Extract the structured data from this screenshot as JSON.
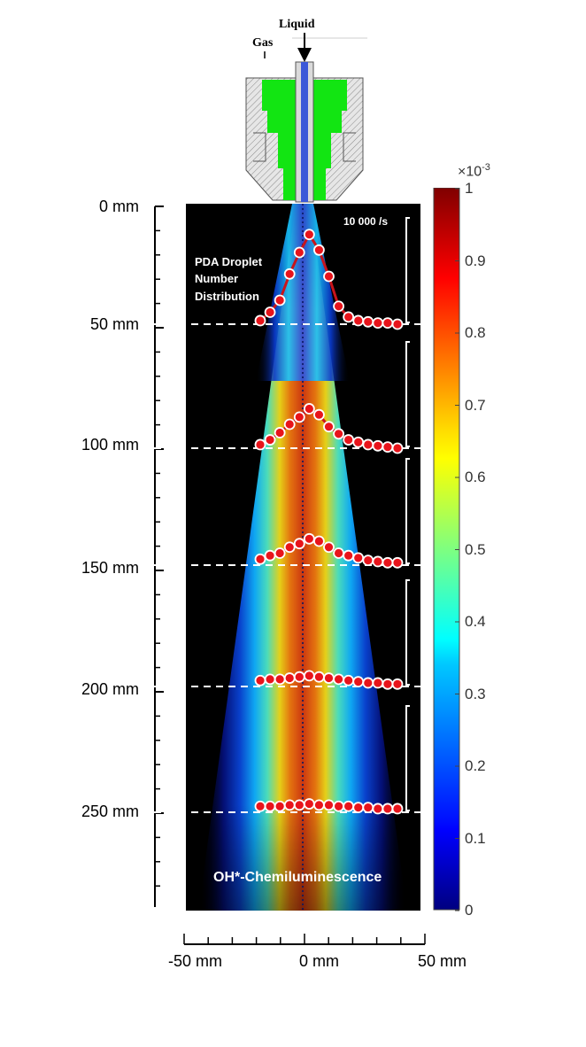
{
  "nozzle": {
    "liquid_label": "Liquid",
    "gas_label": "Gas"
  },
  "image_labels": {
    "pda_label_lines": [
      "PDA Droplet",
      "Number",
      "Distribution"
    ],
    "rate_label": "10 000 /s",
    "oh_label": "OH*-Chemiluminescence"
  },
  "y_axis": {
    "labels": [
      "0 mm",
      "50 mm",
      "100 mm",
      "150 mm",
      "200 mm",
      "250 mm"
    ]
  },
  "x_axis": {
    "labels": [
      "-50 mm",
      "0 mm",
      "50 mm"
    ]
  },
  "colorbar": {
    "multiplier_base": "×10",
    "multiplier_exp": "-3",
    "tick_labels": [
      "1",
      "0.9",
      "0.8",
      "0.7",
      "0.6",
      "0.5",
      "0.4",
      "0.3",
      "0.2",
      "0.1",
      "0"
    ],
    "colormap": "jet"
  },
  "pda_profiles": [
    {
      "axial_mm": 50,
      "relative_count": [
        0.03,
        0.1,
        0.2,
        0.42,
        0.6,
        0.75,
        0.62,
        0.4,
        0.15,
        0.06,
        0.03,
        0.02,
        0.01,
        0.01,
        0.0
      ]
    },
    {
      "axial_mm": 100,
      "relative_count": [
        0.03,
        0.07,
        0.13,
        0.2,
        0.26,
        0.33,
        0.28,
        0.18,
        0.12,
        0.07,
        0.05,
        0.03,
        0.02,
        0.01,
        0.0
      ]
    },
    {
      "axial_mm": 150,
      "relative_count": [
        0.05,
        0.08,
        0.1,
        0.15,
        0.18,
        0.22,
        0.2,
        0.15,
        0.1,
        0.08,
        0.06,
        0.04,
        0.03,
        0.02,
        0.02
      ]
    },
    {
      "axial_mm": 200,
      "relative_count": [
        0.05,
        0.06,
        0.06,
        0.07,
        0.08,
        0.09,
        0.08,
        0.07,
        0.06,
        0.05,
        0.04,
        0.03,
        0.03,
        0.02,
        0.02
      ]
    },
    {
      "axial_mm": 250,
      "relative_count": [
        0.05,
        0.05,
        0.05,
        0.06,
        0.06,
        0.07,
        0.06,
        0.06,
        0.05,
        0.05,
        0.04,
        0.04,
        0.03,
        0.03,
        0.03
      ]
    }
  ],
  "colors": {
    "marker_fill": "#e8141b",
    "profile_line": "#c8141b",
    "dashed_line": "#ffffff"
  }
}
